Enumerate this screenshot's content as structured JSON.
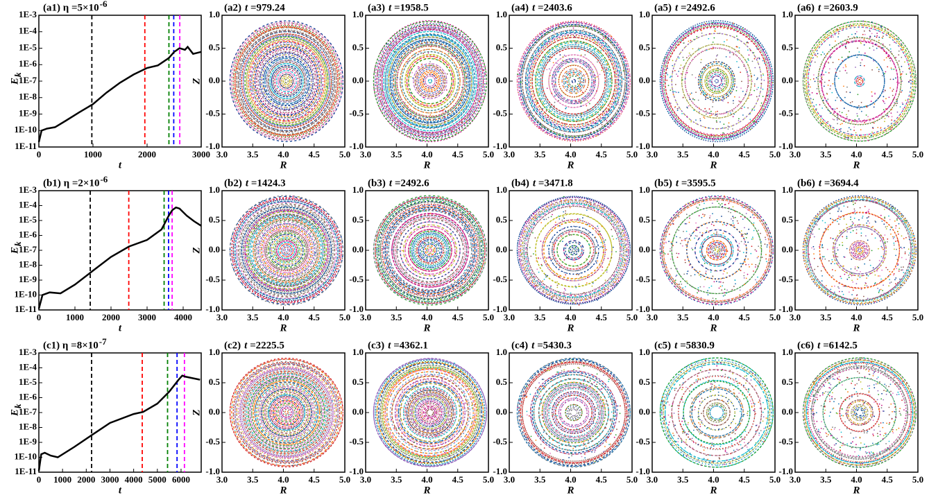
{
  "chart_data": [
    {
      "type": "line",
      "title": "(a1) η =5×10",
      "title_sup": "-6",
      "xlabel": "t",
      "ylabel": "E",
      "ylabel_sub": "k",
      "log_y": true,
      "color": "#000000",
      "xlim": [
        0,
        3000
      ],
      "xticks": [
        0,
        1000,
        2000,
        3000
      ],
      "ylim": [
        1e-11,
        0.001
      ],
      "yticks": [
        {
          "value": 1e-11,
          "label": "1E-11"
        },
        {
          "value": 1e-10,
          "label": "1E-10"
        },
        {
          "value": 1e-09,
          "label": "1E-9"
        },
        {
          "value": 1e-08,
          "label": "1E-8"
        },
        {
          "value": 1e-07,
          "label": "1E-7"
        },
        {
          "value": 1e-06,
          "label": "1E-6"
        },
        {
          "value": 1e-05,
          "label": "1E-5"
        },
        {
          "value": 0.0001,
          "label": "1E-4"
        },
        {
          "value": 0.001,
          "label": "1E-3"
        }
      ],
      "x": [
        0,
        50,
        150,
        300,
        500,
        750,
        1000,
        1250,
        1500,
        1750,
        2000,
        2200,
        2400,
        2500,
        2600,
        2700,
        2750,
        2850,
        3000
      ],
      "values": [
        2e-11,
        1e-10,
        1.3e-10,
        1.6e-10,
        4e-10,
        1.3e-09,
        4e-09,
        2e-08,
        8e-08,
        2.5e-07,
        6.3e-07,
        9e-07,
        2.5e-06,
        5.9e-06,
        1e-05,
        8e-06,
        1.2e-05,
        4.5e-06,
        6e-06
      ]
    },
    {
      "type": "poincare",
      "panel": "(a2)",
      "time_symbol": "t =",
      "time": 979.24,
      "color": "#000000",
      "xlabel": "R",
      "ylabel": "Z",
      "xlim": [
        3,
        5
      ],
      "xticks": [
        {
          "value": 3,
          "label": "3.0"
        },
        {
          "value": 3.5,
          "label": "3.5"
        },
        {
          "value": 4,
          "label": "4.0"
        },
        {
          "value": 4.5,
          "label": "4.5"
        },
        {
          "value": 5,
          "label": "5.0"
        }
      ],
      "ylim": [
        -1,
        1
      ],
      "yticks": [
        {
          "value": -1,
          "label": "-1.0"
        },
        {
          "value": -0.5,
          "label": "-0.5"
        },
        {
          "value": 0,
          "label": "0.0"
        },
        {
          "value": 0.5,
          "label": "0.5"
        },
        {
          "value": 1,
          "label": "1.0"
        }
      ]
    },
    {
      "type": "poincare",
      "panel": "(a3)",
      "time_symbol": "t =",
      "time": 1958.5,
      "color": "#ff0000",
      "xlabel": "R",
      "xlim": [
        3,
        5
      ],
      "xticks": [
        {
          "value": 3,
          "label": "3.0"
        },
        {
          "value": 3.5,
          "label": "3.5"
        },
        {
          "value": 4,
          "label": "4.0"
        },
        {
          "value": 4.5,
          "label": "4.5"
        },
        {
          "value": 5,
          "label": "5.0"
        }
      ],
      "ylim": [
        -1,
        1
      ],
      "yticks": [
        {
          "value": -1,
          "label": "-1.0"
        },
        {
          "value": -0.5,
          "label": "-0.5"
        },
        {
          "value": 0,
          "label": "0.0"
        },
        {
          "value": 0.5,
          "label": "0.5"
        },
        {
          "value": 1,
          "label": "1.0"
        }
      ]
    },
    {
      "type": "poincare",
      "panel": "(a4)",
      "time_symbol": "t =",
      "time": 2403.6,
      "color": "#008000",
      "xlabel": "R",
      "xlim": [
        3,
        5
      ],
      "xticks": [
        {
          "value": 3,
          "label": "3.0"
        },
        {
          "value": 3.5,
          "label": "3.5"
        },
        {
          "value": 4,
          "label": "4.0"
        },
        {
          "value": 4.5,
          "label": "4.5"
        },
        {
          "value": 5,
          "label": "5.0"
        }
      ],
      "ylim": [
        -1,
        1
      ],
      "yticks": [
        {
          "value": -1,
          "label": "-1.0"
        },
        {
          "value": -0.5,
          "label": "-0.5"
        },
        {
          "value": 0,
          "label": "0.0"
        },
        {
          "value": 0.5,
          "label": "0.5"
        },
        {
          "value": 1,
          "label": "1.0"
        }
      ]
    },
    {
      "type": "poincare",
      "panel": "(a5)",
      "time_symbol": "t =",
      "time": 2492.6,
      "color": "#0000ff",
      "xlabel": "R",
      "xlim": [
        3,
        5
      ],
      "xticks": [
        {
          "value": 3,
          "label": "3.0"
        },
        {
          "value": 3.5,
          "label": "3.5"
        },
        {
          "value": 4,
          "label": "4.0"
        },
        {
          "value": 4.5,
          "label": "4.5"
        },
        {
          "value": 5,
          "label": "5.0"
        }
      ],
      "ylim": [
        -1,
        1
      ],
      "yticks": [
        {
          "value": -1,
          "label": "-1.0"
        },
        {
          "value": -0.5,
          "label": "-0.5"
        },
        {
          "value": 0,
          "label": "0.0"
        },
        {
          "value": 0.5,
          "label": "0.5"
        },
        {
          "value": 1,
          "label": "1.0"
        }
      ]
    },
    {
      "type": "poincare",
      "panel": "(a6)",
      "time_symbol": "t =",
      "time": 2603.9,
      "color": "#ff00ff",
      "xlabel": "R",
      "xlim": [
        3,
        5
      ],
      "xticks": [
        {
          "value": 3,
          "label": "3.0"
        },
        {
          "value": 3.5,
          "label": "3.5"
        },
        {
          "value": 4,
          "label": "4.0"
        },
        {
          "value": 4.5,
          "label": "4.5"
        },
        {
          "value": 5,
          "label": "5.0"
        }
      ],
      "ylim": [
        -1,
        1
      ],
      "yticks": [
        {
          "value": -1,
          "label": "-1.0"
        },
        {
          "value": -0.5,
          "label": "-0.5"
        },
        {
          "value": 0,
          "label": "0.0"
        },
        {
          "value": 0.5,
          "label": "0.5"
        },
        {
          "value": 1,
          "label": "1.0"
        }
      ]
    },
    {
      "type": "line",
      "title": "(b1) η =2×10",
      "title_sup": "-6",
      "xlabel": "t",
      "ylabel": "E",
      "ylabel_sub": "k",
      "log_y": true,
      "color": "#000000",
      "xlim": [
        0,
        4500
      ],
      "xticks": [
        0,
        1000,
        2000,
        3000,
        4000
      ],
      "ylim": [
        1e-11,
        0.001
      ],
      "yticks": [
        {
          "value": 1e-11,
          "label": "1E-11"
        },
        {
          "value": 1e-10,
          "label": "1E-10"
        },
        {
          "value": 1e-09,
          "label": "1E-9"
        },
        {
          "value": 1e-08,
          "label": "1E-8"
        },
        {
          "value": 1e-07,
          "label": "1E-7"
        },
        {
          "value": 1e-06,
          "label": "1E-6"
        },
        {
          "value": 1e-05,
          "label": "1E-5"
        },
        {
          "value": 0.0001,
          "label": "1E-4"
        },
        {
          "value": 0.001,
          "label": "1E-3"
        }
      ],
      "x": [
        0,
        100,
        300,
        600,
        1000,
        1500,
        2000,
        2500,
        3000,
        3400,
        3600,
        3700,
        3800,
        3900,
        4100,
        4300,
        4500
      ],
      "values": [
        1.2e-11,
        1e-10,
        1.5e-10,
        1.3e-10,
        5e-10,
        4.3e-09,
        3.6e-08,
        1.8e-07,
        5e-07,
        2.5e-06,
        2.1e-05,
        5e-05,
        7.5e-05,
        6.3e-05,
        2.1e-05,
        9e-06,
        4.4e-06
      ]
    },
    {
      "type": "poincare",
      "panel": "(b2)",
      "time_symbol": "t =",
      "time": 1424.3,
      "color": "#000000",
      "xlabel": "R",
      "ylabel": "Z",
      "xlim": [
        3,
        5
      ],
      "xticks": [
        {
          "value": 3,
          "label": "3.0"
        },
        {
          "value": 3.5,
          "label": "3.5"
        },
        {
          "value": 4,
          "label": "4.0"
        },
        {
          "value": 4.5,
          "label": "4.5"
        },
        {
          "value": 5,
          "label": "5.0"
        }
      ],
      "ylim": [
        -1,
        1
      ],
      "yticks": [
        {
          "value": -1,
          "label": "-1.0"
        },
        {
          "value": -0.5,
          "label": "-0.5"
        },
        {
          "value": 0,
          "label": "0.0"
        },
        {
          "value": 0.5,
          "label": "0.5"
        },
        {
          "value": 1,
          "label": "1.0"
        }
      ]
    },
    {
      "type": "poincare",
      "panel": "(b3)",
      "time_symbol": "t =",
      "time": 2492.6,
      "color": "#ff0000",
      "xlabel": "R",
      "xlim": [
        3,
        5
      ],
      "xticks": [
        {
          "value": 3,
          "label": "3.0"
        },
        {
          "value": 3.5,
          "label": "3.5"
        },
        {
          "value": 4,
          "label": "4.0"
        },
        {
          "value": 4.5,
          "label": "4.5"
        },
        {
          "value": 5,
          "label": "5.0"
        }
      ],
      "ylim": [
        -1,
        1
      ],
      "yticks": [
        {
          "value": -1,
          "label": "-1.0"
        },
        {
          "value": -0.5,
          "label": "-0.5"
        },
        {
          "value": 0,
          "label": "0.0"
        },
        {
          "value": 0.5,
          "label": "0.5"
        },
        {
          "value": 1,
          "label": "1.0"
        }
      ]
    },
    {
      "type": "poincare",
      "panel": "(b4)",
      "time_symbol": "t =",
      "time": 3471.8,
      "color": "#008000",
      "xlabel": "R",
      "xlim": [
        3,
        5
      ],
      "xticks": [
        {
          "value": 3,
          "label": "3.0"
        },
        {
          "value": 3.5,
          "label": "3.5"
        },
        {
          "value": 4,
          "label": "4.0"
        },
        {
          "value": 4.5,
          "label": "4.5"
        },
        {
          "value": 5,
          "label": "5.0"
        }
      ],
      "ylim": [
        -1,
        1
      ],
      "yticks": [
        {
          "value": -1,
          "label": "-1.0"
        },
        {
          "value": -0.5,
          "label": "-0.5"
        },
        {
          "value": 0,
          "label": "0.0"
        },
        {
          "value": 0.5,
          "label": "0.5"
        },
        {
          "value": 1,
          "label": "1.0"
        }
      ]
    },
    {
      "type": "poincare",
      "panel": "(b5)",
      "time_symbol": "t =",
      "time": 3595.5,
      "color": "#0000ff",
      "xlabel": "R",
      "xlim": [
        3,
        5
      ],
      "xticks": [
        {
          "value": 3,
          "label": "3.0"
        },
        {
          "value": 3.5,
          "label": "3.5"
        },
        {
          "value": 4,
          "label": "4.0"
        },
        {
          "value": 4.5,
          "label": "4.5"
        },
        {
          "value": 5,
          "label": "5.0"
        }
      ],
      "ylim": [
        -1,
        1
      ],
      "yticks": [
        {
          "value": -1,
          "label": "-1.0"
        },
        {
          "value": -0.5,
          "label": "-0.5"
        },
        {
          "value": 0,
          "label": "0.0"
        },
        {
          "value": 0.5,
          "label": "0.5"
        },
        {
          "value": 1,
          "label": "1.0"
        }
      ]
    },
    {
      "type": "poincare",
      "panel": "(b6)",
      "time_symbol": "t =",
      "time": 3694.4,
      "color": "#ff00ff",
      "xlabel": "R",
      "xlim": [
        3,
        5
      ],
      "xticks": [
        {
          "value": 3,
          "label": "3.0"
        },
        {
          "value": 3.5,
          "label": "3.5"
        },
        {
          "value": 4,
          "label": "4.0"
        },
        {
          "value": 4.5,
          "label": "4.5"
        },
        {
          "value": 5,
          "label": "5.0"
        }
      ],
      "ylim": [
        -1,
        1
      ],
      "yticks": [
        {
          "value": -1,
          "label": "-1.0"
        },
        {
          "value": -0.5,
          "label": "-0.5"
        },
        {
          "value": 0,
          "label": "0.0"
        },
        {
          "value": 0.5,
          "label": "0.5"
        },
        {
          "value": 1,
          "label": "1.0"
        }
      ]
    },
    {
      "type": "line",
      "title": "(c1) η =8×10",
      "title_sup": "-7",
      "xlabel": "t",
      "ylabel": "E",
      "ylabel_sub": "k",
      "log_y": true,
      "color": "#000000",
      "xlim": [
        0,
        6850
      ],
      "xticks": [
        0,
        1000,
        2000,
        3000,
        4000,
        5000,
        6000
      ],
      "ylim": [
        1e-11,
        0.001
      ],
      "yticks": [
        {
          "value": 1e-11,
          "label": "1E-11"
        },
        {
          "value": 1e-10,
          "label": "1E-10"
        },
        {
          "value": 1e-09,
          "label": "1E-9"
        },
        {
          "value": 1e-08,
          "label": "1E-8"
        },
        {
          "value": 1e-07,
          "label": "1E-7"
        },
        {
          "value": 1e-06,
          "label": "1E-6"
        },
        {
          "value": 1e-05,
          "label": "1E-5"
        },
        {
          "value": 0.0001,
          "label": "1E-4"
        },
        {
          "value": 0.001,
          "label": "1E-3"
        }
      ],
      "x": [
        0,
        100,
        250,
        500,
        800,
        1500,
        2225,
        3000,
        4000,
        4400,
        5000,
        5500,
        5900,
        6050,
        6200,
        6500,
        6800
      ],
      "values": [
        1.2e-11,
        1.6e-10,
        2e-10,
        1.3e-10,
        1e-10,
        5e-10,
        3e-09,
        2e-08,
        8e-08,
        1.1e-07,
        4e-07,
        2.5e-06,
        1.6e-05,
        3e-05,
        2.5e-05,
        2e-05,
        1.6e-05
      ]
    },
    {
      "type": "poincare",
      "panel": "(c2)",
      "time_symbol": "t =",
      "time": 2225.5,
      "color": "#000000",
      "xlabel": "R",
      "ylabel": "Z",
      "xlim": [
        3,
        5
      ],
      "xticks": [
        {
          "value": 3,
          "label": "3.0"
        },
        {
          "value": 3.5,
          "label": "3.5"
        },
        {
          "value": 4,
          "label": "4.0"
        },
        {
          "value": 4.5,
          "label": "4.5"
        },
        {
          "value": 5,
          "label": "5.0"
        }
      ],
      "ylim": [
        -1,
        1
      ],
      "yticks": [
        {
          "value": -1,
          "label": "-1.0"
        },
        {
          "value": -0.5,
          "label": "-0.5"
        },
        {
          "value": 0,
          "label": "0.0"
        },
        {
          "value": 0.5,
          "label": "0.5"
        },
        {
          "value": 1,
          "label": "1.0"
        }
      ]
    },
    {
      "type": "poincare",
      "panel": "(c3)",
      "time_symbol": "t =",
      "time": 4362.1,
      "color": "#ff0000",
      "xlabel": "R",
      "xlim": [
        3,
        5
      ],
      "xticks": [
        {
          "value": 3,
          "label": "3.0"
        },
        {
          "value": 3.5,
          "label": "3.5"
        },
        {
          "value": 4,
          "label": "4.0"
        },
        {
          "value": 4.5,
          "label": "4.5"
        },
        {
          "value": 5,
          "label": "5.0"
        }
      ],
      "ylim": [
        -1,
        1
      ],
      "yticks": [
        {
          "value": -1,
          "label": "-1.0"
        },
        {
          "value": -0.5,
          "label": "-0.5"
        },
        {
          "value": 0,
          "label": "0.0"
        },
        {
          "value": 0.5,
          "label": "0.5"
        },
        {
          "value": 1,
          "label": "1.0"
        }
      ]
    },
    {
      "type": "poincare",
      "panel": "(c4)",
      "time_symbol": "t =",
      "time": 5430.3,
      "color": "#008000",
      "xlabel": "R",
      "xlim": [
        3,
        5
      ],
      "xticks": [
        {
          "value": 3,
          "label": "3.0"
        },
        {
          "value": 3.5,
          "label": "3.5"
        },
        {
          "value": 4,
          "label": "4.0"
        },
        {
          "value": 4.5,
          "label": "4.5"
        },
        {
          "value": 5,
          "label": "5.0"
        }
      ],
      "ylim": [
        -1,
        1
      ],
      "yticks": [
        {
          "value": -1,
          "label": "-1.0"
        },
        {
          "value": -0.5,
          "label": "-0.5"
        },
        {
          "value": 0,
          "label": "0.0"
        },
        {
          "value": 0.5,
          "label": "0.5"
        },
        {
          "value": 1,
          "label": "1.0"
        }
      ]
    },
    {
      "type": "poincare",
      "panel": "(c5)",
      "time_symbol": "t =",
      "time": 5830.9,
      "color": "#0000ff",
      "xlabel": "R",
      "xlim": [
        3,
        5
      ],
      "xticks": [
        {
          "value": 3,
          "label": "3.0"
        },
        {
          "value": 3.5,
          "label": "3.5"
        },
        {
          "value": 4,
          "label": "4.0"
        },
        {
          "value": 4.5,
          "label": "4.5"
        },
        {
          "value": 5,
          "label": "5.0"
        }
      ],
      "ylim": [
        -1,
        1
      ],
      "yticks": [
        {
          "value": -1,
          "label": "-1.0"
        },
        {
          "value": -0.5,
          "label": "-0.5"
        },
        {
          "value": 0,
          "label": "0.0"
        },
        {
          "value": 0.5,
          "label": "0.5"
        },
        {
          "value": 1,
          "label": "1.0"
        }
      ]
    },
    {
      "type": "poincare",
      "panel": "(c6)",
      "time_symbol": "t =",
      "time": 6142.5,
      "color": "#ff00ff",
      "xlabel": "R",
      "xlim": [
        3,
        5
      ],
      "xticks": [
        {
          "value": 3,
          "label": "3.0"
        },
        {
          "value": 3.5,
          "label": "3.5"
        },
        {
          "value": 4,
          "label": "4.0"
        },
        {
          "value": 4.5,
          "label": "4.5"
        },
        {
          "value": 5,
          "label": "5.0"
        }
      ],
      "ylim": [
        -1,
        1
      ],
      "yticks": [
        {
          "value": -1,
          "label": "-1.0"
        },
        {
          "value": -0.5,
          "label": "-0.5"
        },
        {
          "value": 0,
          "label": "0.0"
        },
        {
          "value": 0.5,
          "label": "0.5"
        },
        {
          "value": 1,
          "label": "1.0"
        }
      ]
    }
  ]
}
